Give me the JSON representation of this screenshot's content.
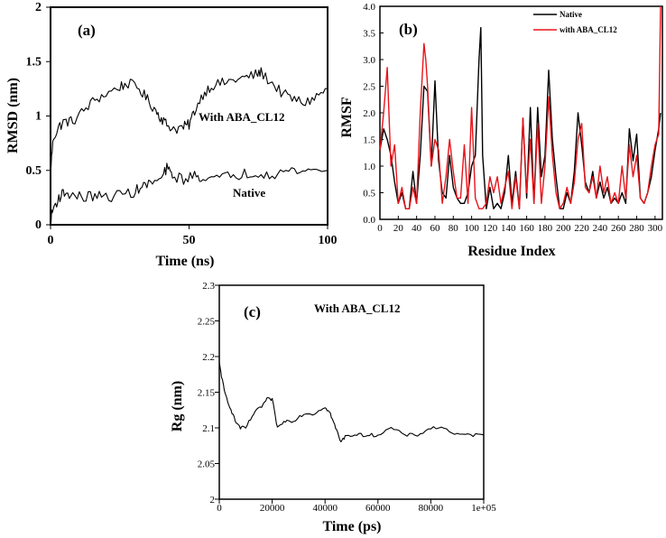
{
  "chart_data": [
    {
      "id": "a",
      "type": "line",
      "panel_label": "(a)",
      "xlabel": "Time (ns)",
      "ylabel": "RMSD (nm)",
      "xlim": [
        0,
        100
      ],
      "ylim": [
        0,
        2
      ],
      "xticks": [
        0,
        50,
        100
      ],
      "yticks": [
        0,
        0.5,
        1,
        1.5,
        2
      ],
      "xtick_labels": [
        "0",
        "50",
        "100"
      ],
      "ytick_labels": [
        "0",
        "0.5",
        "1",
        "1.5",
        "2"
      ],
      "series": [
        {
          "name": "With ABA_CL12",
          "color": "#000000",
          "x": [
            0,
            1,
            3,
            5,
            8,
            12,
            16,
            20,
            25,
            28,
            32,
            35,
            38,
            40,
            42,
            45,
            48,
            50,
            52,
            55,
            58,
            62,
            66,
            70,
            74,
            76,
            80,
            84,
            88,
            92,
            96,
            100
          ],
          "y": [
            0.5,
            0.8,
            0.9,
            0.95,
            0.95,
            1.05,
            1.15,
            1.2,
            1.27,
            1.3,
            1.25,
            1.15,
            1.05,
            0.98,
            0.92,
            0.88,
            0.9,
            0.92,
            1.05,
            1.2,
            1.28,
            1.3,
            1.33,
            1.35,
            1.38,
            1.4,
            1.3,
            1.2,
            1.15,
            1.12,
            1.18,
            1.25
          ]
        },
        {
          "name": "Native",
          "color": "#000000",
          "x": [
            0,
            1,
            3,
            5,
            8,
            12,
            16,
            20,
            25,
            30,
            33,
            36,
            40,
            42,
            44,
            48,
            52,
            55,
            60,
            65,
            70,
            75,
            80,
            85,
            90,
            95,
            100
          ],
          "y": [
            0.05,
            0.15,
            0.25,
            0.3,
            0.27,
            0.25,
            0.27,
            0.25,
            0.28,
            0.3,
            0.35,
            0.38,
            0.42,
            0.52,
            0.45,
            0.42,
            0.45,
            0.44,
            0.42,
            0.45,
            0.47,
            0.48,
            0.47,
            0.49,
            0.5,
            0.5,
            0.5
          ]
        }
      ],
      "annotations": [
        "With ABA_CL12",
        "Native"
      ]
    },
    {
      "id": "b",
      "type": "line",
      "panel_label": "(b)",
      "xlabel": "Residue Index",
      "ylabel": "RMSF",
      "xlim": [
        0,
        308
      ],
      "ylim": [
        0,
        4
      ],
      "xticks": [
        0,
        20,
        40,
        60,
        80,
        100,
        120,
        140,
        160,
        180,
        200,
        220,
        240,
        260,
        280,
        300
      ],
      "yticks": [
        0,
        0.5,
        1,
        1.5,
        2,
        2.5,
        3,
        3.5,
        4
      ],
      "xtick_labels": [
        "0",
        "20",
        "40",
        "60",
        "80",
        "100",
        "120",
        "140",
        "160",
        "180",
        "200",
        "220",
        "240",
        "260",
        "280",
        "300"
      ],
      "ytick_labels": [
        "0.0",
        "0.5",
        "1.0",
        "1.5",
        "2.0",
        "2.5",
        "3.0",
        "3.5",
        "4.0"
      ],
      "legend": {
        "position": "top-right",
        "entries": [
          "Native",
          "with ABA_CL12"
        ]
      },
      "series": [
        {
          "name": "Native",
          "color": "#000000",
          "x": [
            0,
            4,
            8,
            12,
            16,
            20,
            24,
            28,
            32,
            36,
            40,
            44,
            48,
            52,
            56,
            60,
            64,
            68,
            72,
            76,
            80,
            84,
            88,
            92,
            96,
            100,
            104,
            108,
            110,
            112,
            116,
            120,
            124,
            128,
            132,
            136,
            140,
            144,
            148,
            152,
            156,
            160,
            164,
            168,
            172,
            176,
            180,
            184,
            188,
            192,
            196,
            200,
            204,
            208,
            212,
            216,
            220,
            224,
            228,
            232,
            236,
            240,
            244,
            248,
            252,
            256,
            260,
            264,
            268,
            272,
            276,
            280,
            284,
            288,
            292,
            296,
            300,
            304,
            306
          ],
          "y": [
            1.3,
            1.7,
            1.5,
            1.2,
            0.7,
            0.3,
            0.5,
            0.2,
            0.2,
            0.9,
            0.3,
            1.2,
            2.5,
            2.4,
            1.0,
            2.6,
            1.1,
            0.5,
            0.4,
            1.2,
            0.6,
            0.4,
            0.3,
            0.3,
            0.5,
            1.0,
            1.2,
            3.0,
            3.6,
            1.2,
            0.2,
            0.6,
            0.2,
            0.3,
            0.2,
            0.5,
            1.2,
            0.3,
            0.9,
            0.2,
            1.9,
            0.4,
            2.1,
            0.3,
            2.1,
            0.8,
            1.2,
            2.8,
            1.5,
            0.8,
            0.2,
            0.2,
            0.5,
            0.3,
            0.9,
            2.0,
            1.4,
            0.7,
            0.5,
            0.9,
            0.4,
            0.7,
            0.4,
            0.6,
            0.3,
            0.4,
            0.3,
            0.5,
            0.3,
            1.7,
            1.1,
            1.6,
            0.4,
            0.3,
            0.5,
            0.8,
            1.3,
            1.7,
            2.0
          ]
        },
        {
          "name": "with ABA_CL12",
          "color": "#e8141a",
          "x": [
            0,
            4,
            8,
            12,
            16,
            20,
            24,
            28,
            32,
            36,
            40,
            44,
            48,
            50,
            52,
            56,
            60,
            64,
            68,
            72,
            76,
            80,
            84,
            88,
            92,
            96,
            100,
            104,
            108,
            112,
            116,
            120,
            124,
            128,
            132,
            136,
            140,
            144,
            148,
            152,
            156,
            160,
            164,
            168,
            172,
            176,
            180,
            184,
            188,
            192,
            196,
            200,
            204,
            208,
            212,
            216,
            220,
            224,
            228,
            232,
            236,
            240,
            244,
            248,
            252,
            256,
            260,
            264,
            268,
            272,
            276,
            280,
            284,
            288,
            292,
            296,
            300,
            304,
            306
          ],
          "y": [
            1.3,
            2.0,
            2.85,
            1.0,
            1.4,
            0.3,
            0.6,
            0.2,
            0.2,
            0.6,
            0.3,
            2.0,
            3.3,
            3.0,
            2.5,
            1.0,
            1.5,
            1.3,
            0.3,
            0.8,
            1.5,
            0.9,
            0.4,
            0.4,
            1.4,
            0.3,
            2.1,
            0.4,
            0.2,
            0.2,
            0.3,
            0.8,
            0.5,
            0.8,
            0.3,
            0.6,
            0.9,
            0.2,
            0.8,
            0.2,
            1.9,
            0.5,
            1.5,
            0.3,
            1.8,
            0.3,
            1.0,
            2.3,
            1.2,
            0.5,
            0.2,
            0.3,
            0.6,
            0.3,
            0.7,
            1.5,
            1.8,
            0.6,
            0.5,
            0.8,
            0.4,
            1.0,
            0.5,
            0.8,
            0.3,
            0.5,
            0.3,
            1.0,
            0.4,
            1.4,
            0.8,
            1.2,
            0.4,
            0.3,
            0.5,
            1.0,
            1.4,
            1.6,
            4.0
          ]
        }
      ]
    },
    {
      "id": "c",
      "type": "line",
      "panel_label": "(c)",
      "xlabel": "Time (ps)",
      "ylabel": "Rg (nm)",
      "xlim": [
        0,
        100000
      ],
      "ylim": [
        2,
        2.3
      ],
      "xticks": [
        0,
        20000,
        40000,
        60000,
        80000,
        100000
      ],
      "yticks": [
        2,
        2.05,
        2.1,
        2.15,
        2.2,
        2.25,
        2.3
      ],
      "xtick_labels": [
        "0",
        "20000",
        "40000",
        "60000",
        "80000",
        "1e+05"
      ],
      "ytick_labels": [
        "2",
        "2.05",
        "2.1",
        "2.15",
        "2.2",
        "2.25",
        "2.3"
      ],
      "annotations": [
        "With ABA_CL12"
      ],
      "series": [
        {
          "name": "With ABA_CL12",
          "color": "#000000",
          "x": [
            0,
            1000,
            2000,
            4000,
            6000,
            8000,
            10000,
            13000,
            16000,
            18000,
            20000,
            22000,
            25000,
            28000,
            32000,
            36000,
            40000,
            42000,
            44000,
            46000,
            48000,
            52000,
            56000,
            60000,
            65000,
            70000,
            75000,
            80000,
            85000,
            90000,
            95000,
            100000
          ],
          "y": [
            2.19,
            2.17,
            2.15,
            2.13,
            2.11,
            2.1,
            2.1,
            2.12,
            2.13,
            2.14,
            2.14,
            2.1,
            2.11,
            2.11,
            2.12,
            2.12,
            2.13,
            2.12,
            2.1,
            2.08,
            2.09,
            2.09,
            2.09,
            2.09,
            2.1,
            2.09,
            2.09,
            2.1,
            2.1,
            2.09,
            2.09,
            2.09
          ]
        }
      ]
    }
  ]
}
